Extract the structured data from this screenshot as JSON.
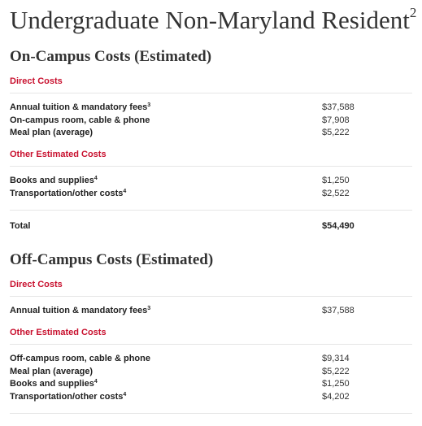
{
  "page_title": {
    "text": "Undergraduate Non-Maryland Resident",
    "sup": "2"
  },
  "on_campus": {
    "heading": "On-Campus Costs (Estimated)",
    "direct_heading": "Direct Costs",
    "direct_rows": [
      {
        "label": "Annual tuition & mandatory fees",
        "sup": "3",
        "value": "$37,588"
      },
      {
        "label": "On-campus room, cable & phone",
        "sup": "",
        "value": "$7,908"
      },
      {
        "label": "Meal plan (average)",
        "sup": "",
        "value": "$5,222"
      }
    ],
    "other_heading": "Other Estimated Costs",
    "other_rows": [
      {
        "label": "Books and supplies",
        "sup": "4",
        "value": "$1,250"
      },
      {
        "label": "Transportation/other costs",
        "sup": "4",
        "value": "$2,522"
      }
    ],
    "total": {
      "label": "Total",
      "value": "$54,490"
    }
  },
  "off_campus": {
    "heading": "Off-Campus Costs (Estimated)",
    "direct_heading": "Direct Costs",
    "direct_rows": [
      {
        "label": "Annual tuition & mandatory fees",
        "sup": "3",
        "value": "$37,588"
      }
    ],
    "other_heading": "Other Estimated Costs",
    "other_rows": [
      {
        "label": "Off-campus room, cable & phone",
        "sup": "",
        "value": "$9,314"
      },
      {
        "label": "Meal plan (average)",
        "sup": "",
        "value": "$5,222"
      },
      {
        "label": "Books and supplies",
        "sup": "4",
        "value": "$1,250"
      },
      {
        "label": "Transportation/other costs",
        "sup": "4",
        "value": "$4,202"
      }
    ]
  }
}
